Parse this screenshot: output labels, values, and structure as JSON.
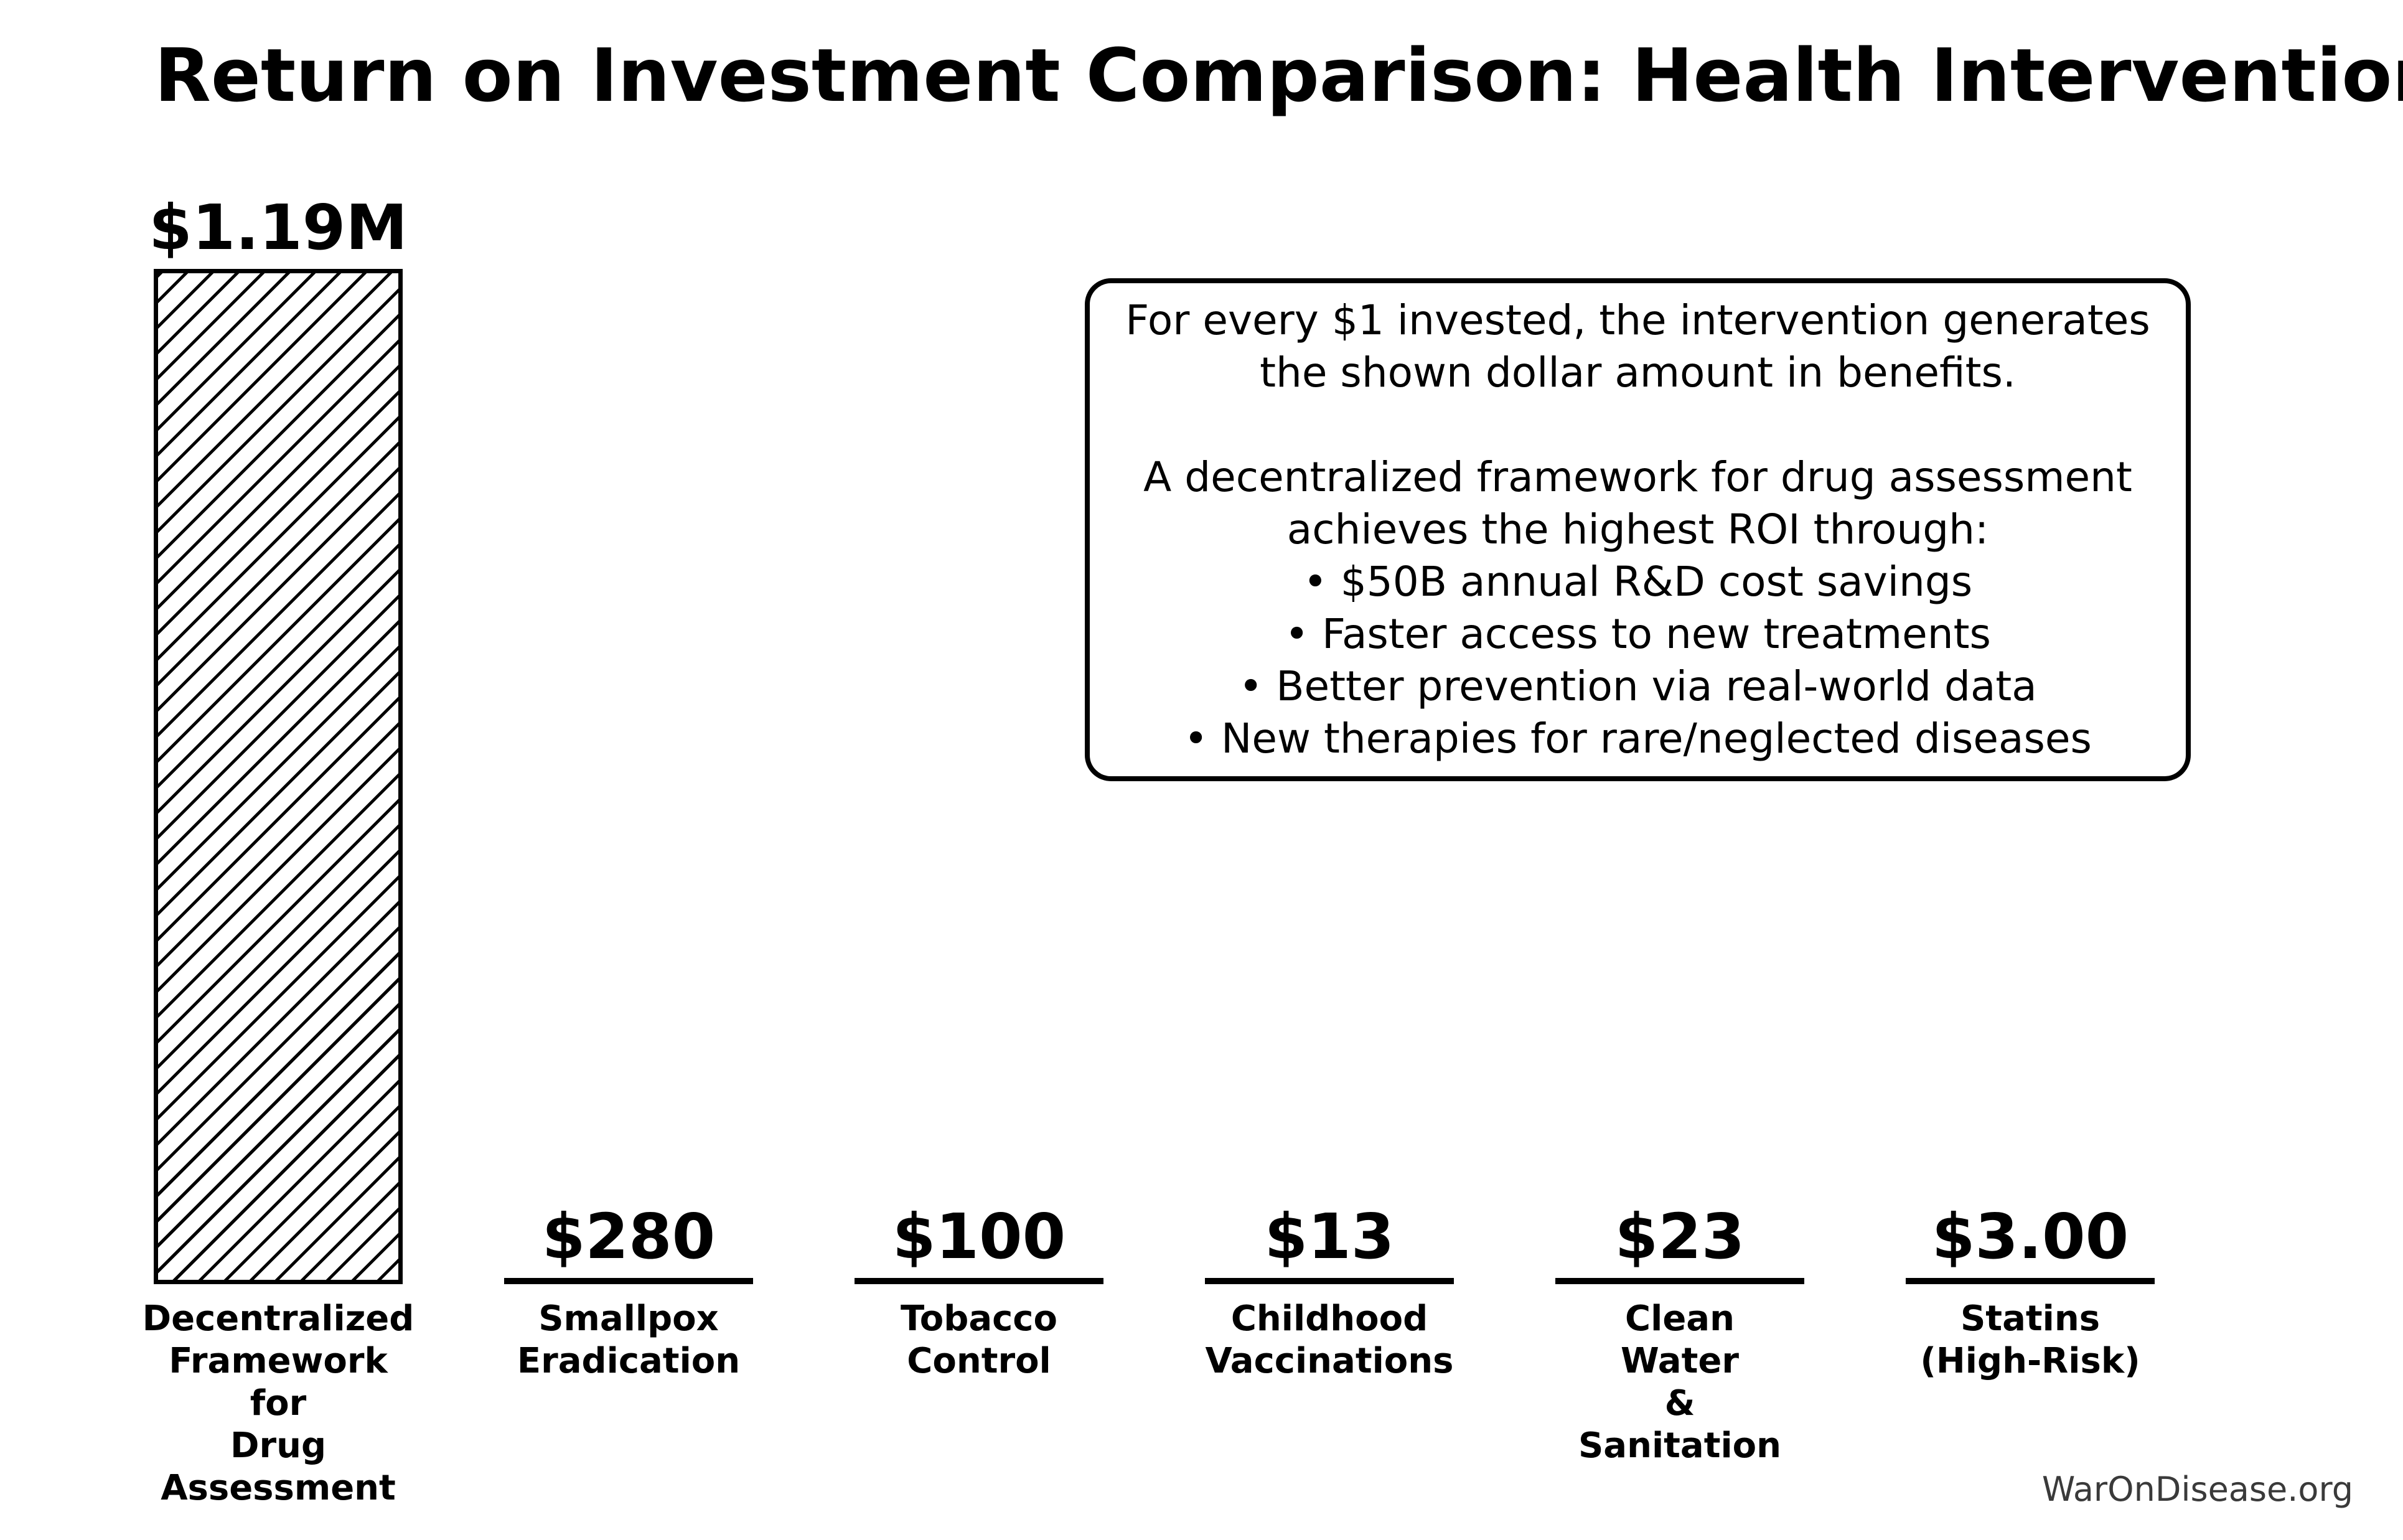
{
  "page": {
    "background": "#ffffff",
    "text_color": "#000000"
  },
  "header": {
    "title": "Return on Investment Comparison: Health Interventions"
  },
  "annotation_box": {
    "text": "For every $1 invested, the intervention generates\nthe shown dollar amount in benefits.\n\nA decentralized framework for drug assessment\nachieves the highest ROI through:\n• $50B annual R&D cost savings\n• Faster access to new treatments\n• Better prevention via real-world data\n• New therapies for rare/neglected diseases",
    "border_color": "#000000"
  },
  "footer": {
    "source": "WarOnDisease.org",
    "color": "#3a3a3a"
  },
  "chart_data": {
    "type": "bar",
    "title": "Return on Investment Comparison: Health Interventions",
    "categories": [
      "Decentralized Framework for Drug Assessment",
      "Smallpox Eradication",
      "Tobacco Control",
      "Childhood Vaccinations",
      "Clean Water & Sanitation",
      "Statins (High-Risk)"
    ],
    "categories_display": [
      "Decentralized\nFramework\nfor\nDrug\nAssessment",
      "Smallpox\nEradication",
      "Tobacco\nControl",
      "Childhood\nVaccinations",
      "Clean\nWater\n&\nSanitation",
      "Statins\n(High-Risk)"
    ],
    "values": [
      1190000,
      280,
      100,
      13,
      23,
      3
    ],
    "value_labels": [
      "$1.19M",
      "$280",
      "$100",
      "$13",
      "$23",
      "$3.00"
    ],
    "xlabel": "",
    "ylabel": "",
    "ylim": [
      0,
      1250000
    ],
    "grid": false,
    "axes_visible": false,
    "legend": "none",
    "bar_style": {
      "fill": "#ffffff",
      "hatch": "///",
      "edge_color": "#000000"
    },
    "annotation": "For every $1 invested, the intervention generates the shown dollar amount in benefits. A decentralized framework for drug assessment achieves the highest ROI through: $50B annual R&D cost savings; Faster access to new treatments; Better prevention via real-world data; New therapies for rare/neglected diseases",
    "source": "WarOnDisease.org"
  }
}
